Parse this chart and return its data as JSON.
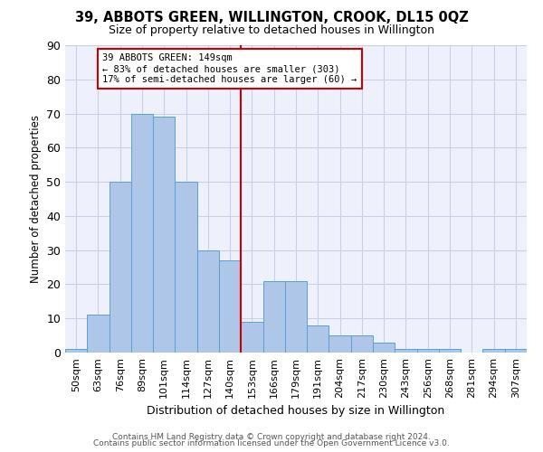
{
  "title": "39, ABBOTS GREEN, WILLINGTON, CROOK, DL15 0QZ",
  "subtitle": "Size of property relative to detached houses in Willington",
  "xlabel": "Distribution of detached houses by size in Willington",
  "ylabel": "Number of detached properties",
  "bar_labels": [
    "50sqm",
    "63sqm",
    "76sqm",
    "89sqm",
    "101sqm",
    "114sqm",
    "127sqm",
    "140sqm",
    "153sqm",
    "166sqm",
    "179sqm",
    "191sqm",
    "204sqm",
    "217sqm",
    "230sqm",
    "243sqm",
    "256sqm",
    "268sqm",
    "281sqm",
    "294sqm",
    "307sqm"
  ],
  "bar_values": [
    1,
    11,
    50,
    70,
    69,
    50,
    30,
    27,
    9,
    21,
    21,
    8,
    5,
    5,
    3,
    1,
    1,
    1,
    0,
    1,
    1
  ],
  "bar_color": "#aec6e8",
  "bar_edge_color": "#5a9fd4",
  "vline_x": 7.5,
  "vline_color": "#cc0000",
  "annotation_title": "39 ABBOTS GREEN: 149sqm",
  "annotation_line1": "← 83% of detached houses are smaller (303)",
  "annotation_line2": "17% of semi-detached houses are larger (60) →",
  "annotation_box_color": "#cc0000",
  "ylim": [
    0,
    90
  ],
  "yticks": [
    0,
    10,
    20,
    30,
    40,
    50,
    60,
    70,
    80,
    90
  ],
  "footnote1": "Contains HM Land Registry data © Crown copyright and database right 2024.",
  "footnote2": "Contains public sector information licensed under the Open Government Licence v3.0.",
  "bg_color": "#eef1fb",
  "grid_color": "#c8d0e8"
}
